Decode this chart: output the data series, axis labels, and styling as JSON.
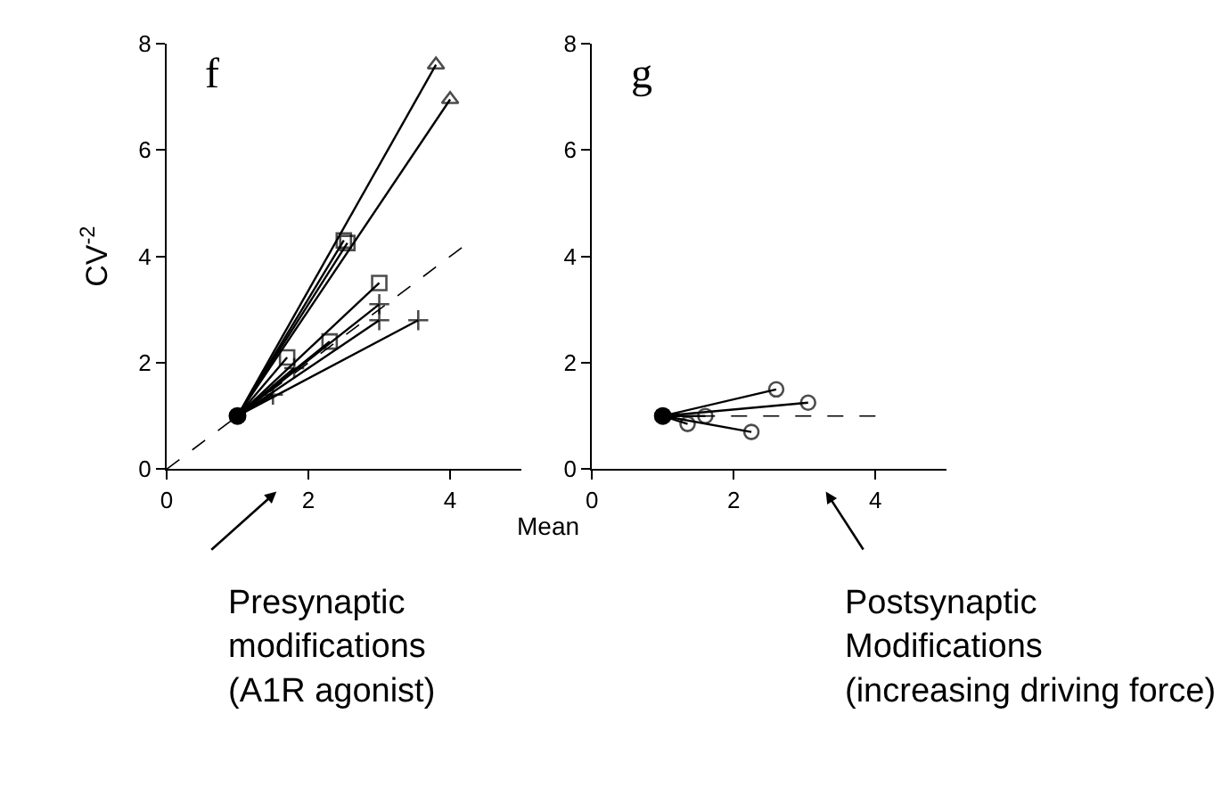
{
  "chart_data": [
    {
      "type": "line",
      "title": "f",
      "ylabel": "CV$^{-2}$",
      "xlabel": "Mean",
      "xlim": [
        0,
        5
      ],
      "ylim": [
        0,
        8
      ],
      "xticks": [
        0,
        2,
        4
      ],
      "yticks": [
        0,
        2,
        4,
        6,
        8
      ],
      "annotations": [
        "Presynaptic\nmodifications\n(A1R agonist)"
      ],
      "series": [
        {
          "color": "#000000",
          "line_style": "dashed",
          "marker": "none",
          "x": [
            0,
            4.2
          ],
          "values": [
            0,
            4.2
          ]
        },
        {
          "color": "#000000",
          "marker": "triangle",
          "x": [
            1,
            3.8
          ],
          "values": [
            1,
            7.6
          ]
        },
        {
          "color": "#000000",
          "marker": "triangle",
          "x": [
            1,
            4
          ],
          "values": [
            1,
            6.95
          ]
        },
        {
          "color": "#000000",
          "marker": "square",
          "x": [
            1,
            2.5
          ],
          "values": [
            1,
            4.3
          ]
        },
        {
          "color": "#000000",
          "marker": "square",
          "x": [
            1,
            2.55
          ],
          "values": [
            1,
            4.25
          ]
        },
        {
          "color": "#000000",
          "marker": "square",
          "x": [
            1,
            3
          ],
          "values": [
            1,
            3.5
          ]
        },
        {
          "color": "#000000",
          "marker": "square",
          "x": [
            1,
            2.3
          ],
          "values": [
            1,
            2.4
          ]
        },
        {
          "color": "#000000",
          "marker": "square",
          "x": [
            1,
            1.7
          ],
          "values": [
            1,
            2.1
          ]
        },
        {
          "color": "#000000",
          "marker": "cross",
          "x": [
            1,
            3
          ],
          "values": [
            1,
            3.1
          ]
        },
        {
          "color": "#000000",
          "marker": "cross",
          "x": [
            1,
            3
          ],
          "values": [
            1,
            2.8
          ]
        },
        {
          "color": "#000000",
          "marker": "cross",
          "x": [
            1,
            3.55
          ],
          "values": [
            1,
            2.8
          ]
        },
        {
          "color": "#000000",
          "marker": "cross",
          "x": [
            1,
            1.8
          ],
          "values": [
            1,
            1.9
          ]
        },
        {
          "color": "#000000",
          "marker": "cross",
          "x": [
            1,
            1.5
          ],
          "values": [
            1,
            1.4
          ]
        },
        {
          "type": "scatter",
          "color": "#000000",
          "marker": "circle",
          "x": [
            1
          ],
          "values": [
            1
          ]
        }
      ]
    },
    {
      "type": "line",
      "title": "g",
      "xlim": [
        0,
        5
      ],
      "ylim": [
        0,
        8
      ],
      "xticks": [
        0,
        2,
        4
      ],
      "yticks": [
        0,
        2,
        4,
        6,
        8
      ],
      "annotations": [
        "Postsynaptic\nModifications\n(increasing driving force)"
      ],
      "series": [
        {
          "color": "#000000",
          "line_style": "dashed",
          "marker": "none",
          "x": [
            4,
            0.9
          ],
          "values": [
            1,
            1
          ]
        },
        {
          "color": "#000000",
          "marker": "circle",
          "x": [
            1,
            2.6
          ],
          "values": [
            1,
            1.5
          ]
        },
        {
          "color": "#000000",
          "marker": "circle",
          "x": [
            1,
            3.05
          ],
          "values": [
            1,
            1.25
          ]
        },
        {
          "color": "#000000",
          "marker": "circle",
          "x": [
            1,
            1.35
          ],
          "values": [
            1,
            0.85
          ]
        },
        {
          "color": "#000000",
          "marker": "circle",
          "x": [
            1,
            1.6
          ],
          "values": [
            1,
            1.0
          ]
        },
        {
          "color": "#000000",
          "marker": "circle",
          "x": [
            1,
            2.25
          ],
          "values": [
            1,
            0.7
          ]
        },
        {
          "type": "scatter",
          "color": "#000000",
          "marker": "circle",
          "x": [
            1
          ],
          "values": [
            1
          ]
        }
      ]
    }
  ]
}
